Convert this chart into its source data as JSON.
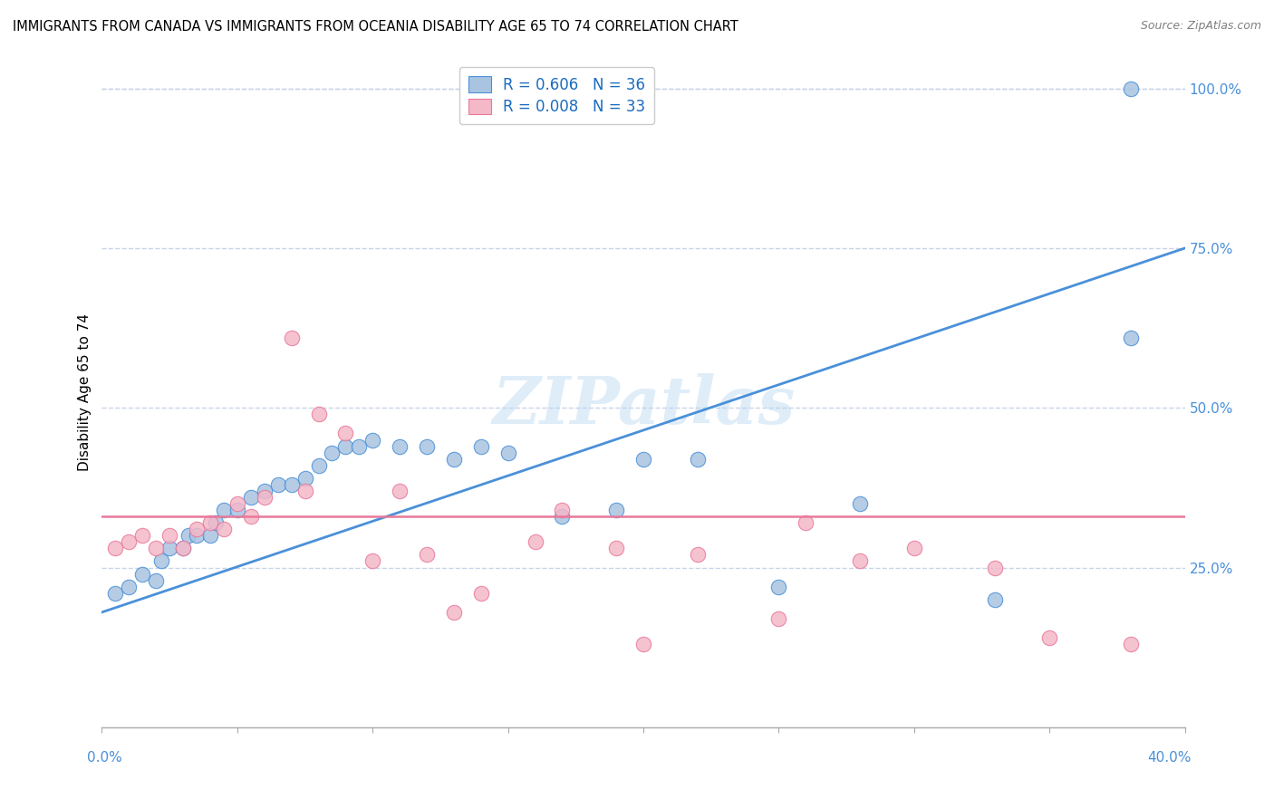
{
  "title": "IMMIGRANTS FROM CANADA VS IMMIGRANTS FROM OCEANIA DISABILITY AGE 65 TO 74 CORRELATION CHART",
  "source": "Source: ZipAtlas.com",
  "ylabel": "Disability Age 65 to 74",
  "canada_R": 0.606,
  "canada_N": 36,
  "oceania_R": 0.008,
  "oceania_N": 33,
  "canada_color": "#a8c4e0",
  "oceania_color": "#f4b8c8",
  "canada_line_color": "#4a90d9",
  "oceania_line_color": "#e8799a",
  "watermark_text": "ZIPatlas",
  "legend_color": "#1a6bbf",
  "canada_scatter_x": [
    0.5,
    1.0,
    1.5,
    2.0,
    2.2,
    2.5,
    3.0,
    3.2,
    3.5,
    4.0,
    4.2,
    4.5,
    5.0,
    5.5,
    6.0,
    6.5,
    7.0,
    7.5,
    8.0,
    8.5,
    9.0,
    9.5,
    10.0,
    11.0,
    12.0,
    13.0,
    14.0,
    15.0,
    17.0,
    19.0,
    20.0,
    22.0,
    25.0,
    28.0,
    33.0,
    38.0
  ],
  "canada_scatter_y": [
    21.0,
    22.0,
    24.0,
    23.0,
    26.0,
    28.0,
    28.0,
    30.0,
    30.0,
    30.0,
    32.0,
    34.0,
    34.0,
    36.0,
    37.0,
    38.0,
    38.0,
    39.0,
    41.0,
    43.0,
    44.0,
    44.0,
    45.0,
    44.0,
    44.0,
    42.0,
    44.0,
    43.0,
    33.0,
    34.0,
    42.0,
    42.0,
    22.0,
    35.0,
    20.0,
    61.0
  ],
  "canada_outlier_x": 38.0,
  "canada_outlier_y": 100.0,
  "oceania_scatter_x": [
    0.5,
    1.0,
    1.5,
    2.0,
    2.5,
    3.0,
    3.5,
    4.0,
    4.5,
    5.0,
    5.5,
    6.0,
    7.0,
    7.5,
    8.0,
    9.0,
    10.0,
    11.0,
    12.0,
    13.0,
    14.0,
    16.0,
    17.0,
    19.0,
    20.0,
    22.0,
    25.0,
    26.0,
    28.0,
    30.0,
    33.0,
    35.0,
    38.0
  ],
  "oceania_scatter_y": [
    28.0,
    29.0,
    30.0,
    28.0,
    30.0,
    28.0,
    31.0,
    32.0,
    31.0,
    35.0,
    33.0,
    36.0,
    61.0,
    37.0,
    49.0,
    46.0,
    26.0,
    37.0,
    27.0,
    18.0,
    21.0,
    29.0,
    34.0,
    28.0,
    13.0,
    27.0,
    17.0,
    32.0,
    26.0,
    28.0,
    25.0,
    14.0,
    13.0
  ],
  "canada_trend_x0": 0.0,
  "canada_trend_y0": 18.0,
  "canada_trend_x1": 40.0,
  "canada_trend_y1": 75.0,
  "oceania_trend_y": 33.0,
  "xmin": 0.0,
  "xmax": 40.0,
  "ymin": 0.0,
  "ymax": 105.0,
  "right_yticks": [
    25.0,
    50.0,
    75.0,
    100.0
  ],
  "grid_color": "#c8d4e8",
  "background_color": "#ffffff",
  "title_fontsize": 11,
  "source_fontsize": 9
}
